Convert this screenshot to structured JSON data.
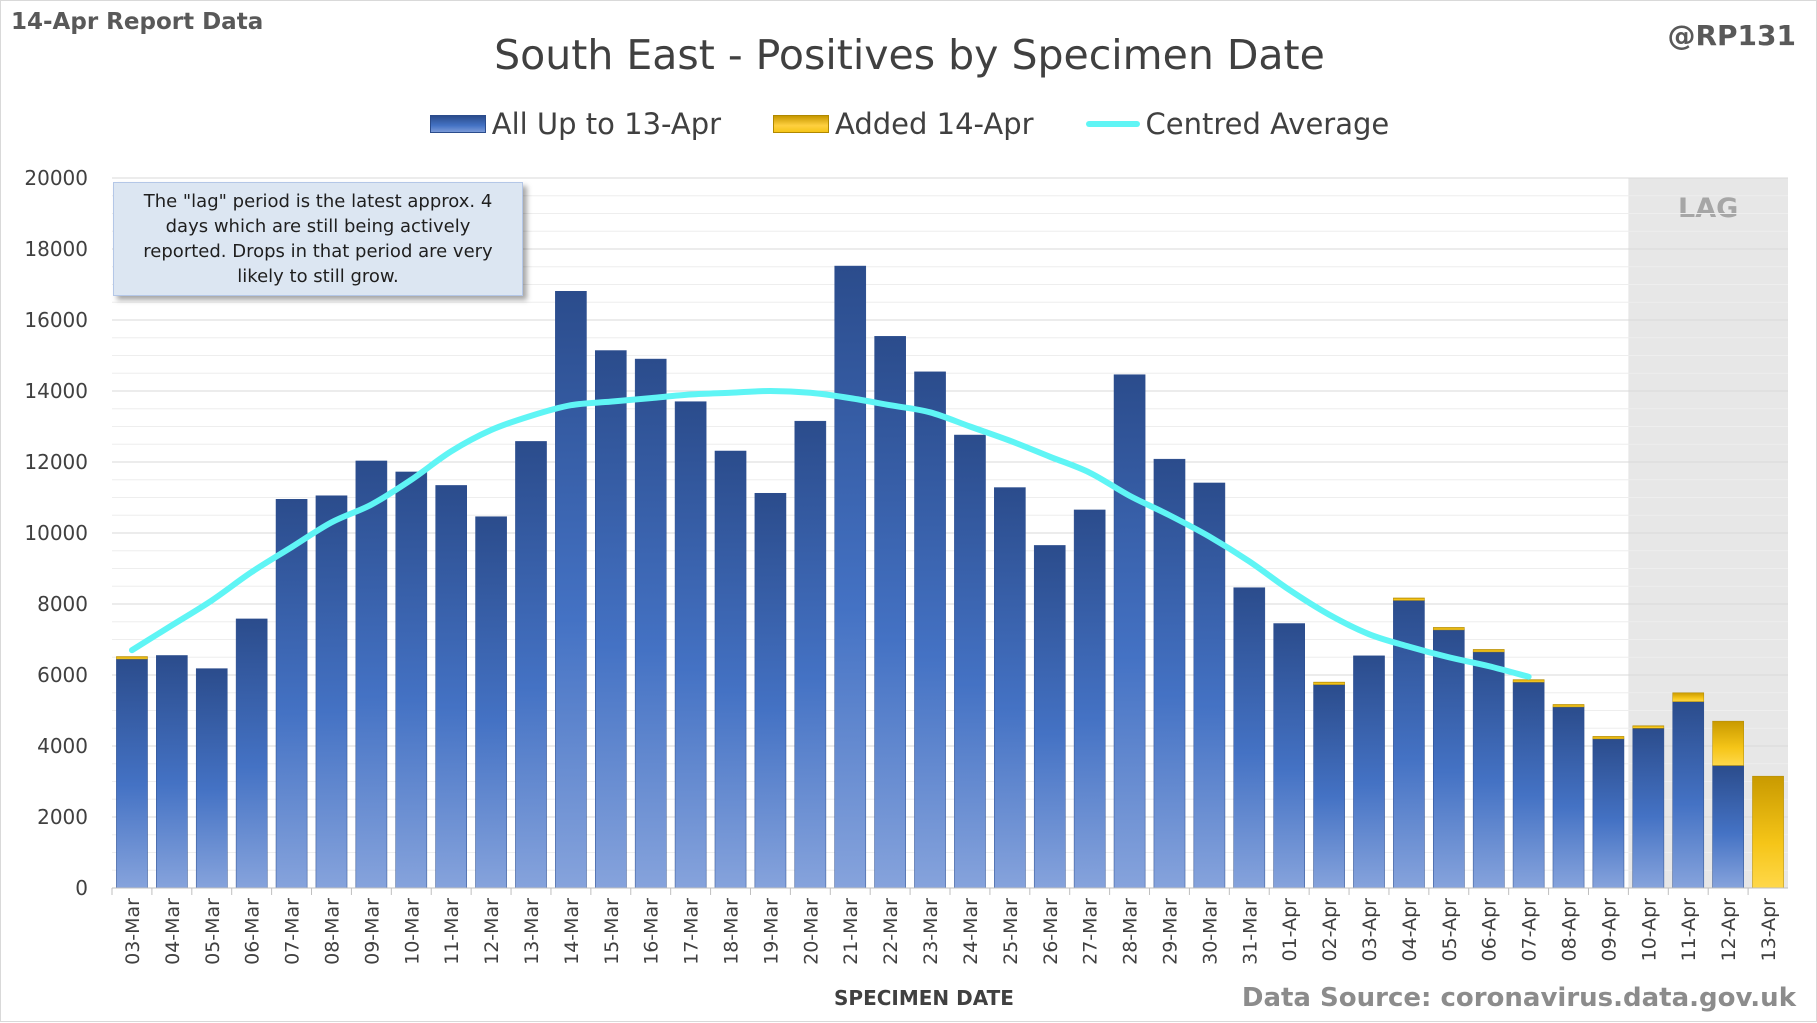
{
  "header": {
    "report_label": "14-Apr Report Data",
    "handle": "@RP131"
  },
  "note": "The \"lag\" period is the latest approx. 4 days which are still being actively reported.  Drops in that period are very likely to still grow.",
  "source": "Data Source: coronavirus.data.gov.uk",
  "colors": {
    "bar_base": "#4472c4",
    "bar_dark": "#2b4c8c",
    "bar_added": "#f5c518",
    "average_line": "#5ff5f5",
    "lag_shade": "#e7e7e7"
  },
  "chart_data": {
    "type": "bar",
    "title": "South East - Positives by Specimen Date",
    "xlabel": "SPECIMEN DATE",
    "ylabel": "",
    "ylim": [
      0,
      20000
    ],
    "yticks": [
      0,
      2000,
      4000,
      6000,
      8000,
      10000,
      12000,
      14000,
      16000,
      18000,
      20000
    ],
    "grid": true,
    "stacked": true,
    "legend_position": "top",
    "lag_label": "LAG",
    "lag_categories": [
      "10-Apr",
      "11-Apr",
      "12-Apr",
      "13-Apr"
    ],
    "categories": [
      "03-Mar",
      "04-Mar",
      "05-Mar",
      "06-Mar",
      "07-Mar",
      "08-Mar",
      "09-Mar",
      "10-Mar",
      "11-Mar",
      "12-Mar",
      "13-Mar",
      "14-Mar",
      "15-Mar",
      "16-Mar",
      "17-Mar",
      "18-Mar",
      "19-Mar",
      "20-Mar",
      "21-Mar",
      "22-Mar",
      "23-Mar",
      "24-Mar",
      "25-Mar",
      "26-Mar",
      "27-Mar",
      "28-Mar",
      "29-Mar",
      "30-Mar",
      "31-Mar",
      "01-Apr",
      "02-Apr",
      "03-Apr",
      "04-Apr",
      "05-Apr",
      "06-Apr",
      "07-Apr",
      "08-Apr",
      "09-Apr",
      "10-Apr",
      "11-Apr",
      "12-Apr",
      "13-Apr"
    ],
    "series": [
      {
        "name": "All Up to 13-Apr",
        "values": [
          6450,
          6550,
          6180,
          7580,
          10950,
          11050,
          12030,
          11720,
          11340,
          10460,
          12580,
          16810,
          15140,
          14900,
          13700,
          12310,
          11120,
          13150,
          17520,
          15540,
          14540,
          12760,
          11280,
          9650,
          10650,
          14460,
          12080,
          11410,
          8460,
          7450,
          5730,
          6540,
          8100,
          7270,
          6650,
          5800,
          5100,
          4200,
          4500,
          5250,
          3450,
          0
        ]
      },
      {
        "name": "Added 14-Apr",
        "values": [
          10,
          0,
          0,
          0,
          0,
          0,
          0,
          0,
          0,
          0,
          0,
          0,
          0,
          0,
          0,
          0,
          0,
          0,
          0,
          0,
          0,
          0,
          0,
          0,
          0,
          0,
          0,
          0,
          0,
          0,
          20,
          0,
          20,
          30,
          30,
          30,
          30,
          20,
          40,
          250,
          1250,
          3150
        ]
      },
      {
        "name": "Centred Average",
        "type": "line",
        "values": [
          6700,
          7400,
          8100,
          8900,
          9600,
          10300,
          10800,
          11500,
          12300,
          12900,
          13300,
          13600,
          13700,
          13800,
          13900,
          13950,
          14000,
          13950,
          13800,
          13600,
          13400,
          13000,
          12600,
          12150,
          11700,
          11050,
          10500,
          9900,
          9200,
          8400,
          7700,
          7150,
          6800,
          6500,
          6250,
          5950,
          null,
          null,
          null,
          null,
          null,
          null
        ]
      }
    ]
  }
}
